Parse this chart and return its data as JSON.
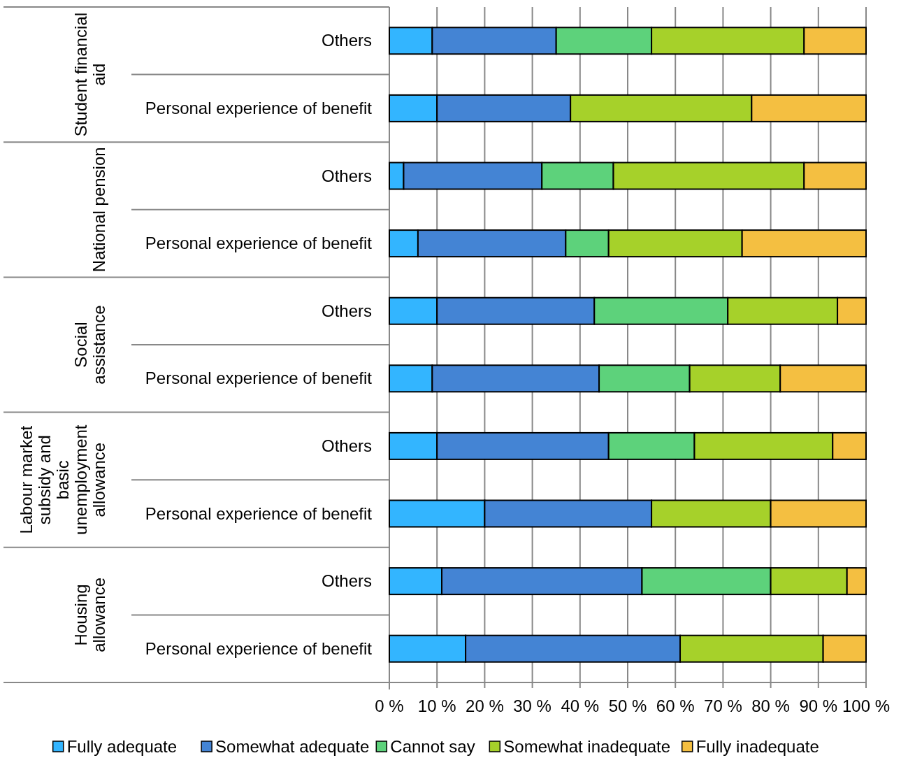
{
  "chart_data": {
    "type": "bar",
    "orientation": "horizontal",
    "stacked": true,
    "categories": [
      "Others",
      "Personal experience of benefit",
      "Others",
      "Personal experience of benefit",
      "Others",
      "Personal experience of benefit",
      "Others",
      "Personal experience of benefit",
      "Others",
      "Personal experience of benefit"
    ],
    "series": [
      {
        "name": "Fully adequate",
        "color": "#33b5ff",
        "values": [
          9,
          10,
          3,
          6,
          10,
          9,
          10,
          20,
          11,
          16
        ]
      },
      {
        "name": "Somewhat adequate",
        "color": "#4484d4",
        "values": [
          26,
          28,
          29,
          31,
          33,
          35,
          36,
          35,
          42,
          45
        ]
      },
      {
        "name": "Cannot say",
        "color": "#5dd27b",
        "values": [
          20,
          0,
          15,
          9,
          28,
          19,
          18,
          0,
          27,
          0
        ]
      },
      {
        "name": "Somewhat inadequate",
        "color": "#a6d12a",
        "values": [
          32,
          38,
          40,
          28,
          23,
          19,
          29,
          25,
          16,
          30
        ]
      },
      {
        "name": "Fully inadequate",
        "color": "#f4bf41",
        "values": [
          13,
          24,
          13,
          26,
          6,
          18,
          7,
          20,
          4,
          9
        ]
      }
    ],
    "xlim": [
      0,
      100
    ],
    "xticks": [
      {
        "value": 0,
        "label": "0 %"
      },
      {
        "value": 10,
        "label": "10 %"
      },
      {
        "value": 20,
        "label": "20 %"
      },
      {
        "value": 30,
        "label": "30 %"
      },
      {
        "value": 40,
        "label": "40 %"
      },
      {
        "value": 50,
        "label": "50 %"
      },
      {
        "value": 60,
        "label": "60 %"
      },
      {
        "value": 70,
        "label": "70 %"
      },
      {
        "value": 80,
        "label": "80 %"
      },
      {
        "value": 90,
        "label": "90 %"
      },
      {
        "value": 100,
        "label": "100 %"
      }
    ],
    "annotations": [
      "Student financial\naid",
      "National pension",
      "Social\nassistance",
      "Labour market\nsubsidy and\nbasic\nunemployment\nallowance",
      "Housing\nallowance"
    ],
    "grid": "x",
    "legend": "bottom"
  }
}
